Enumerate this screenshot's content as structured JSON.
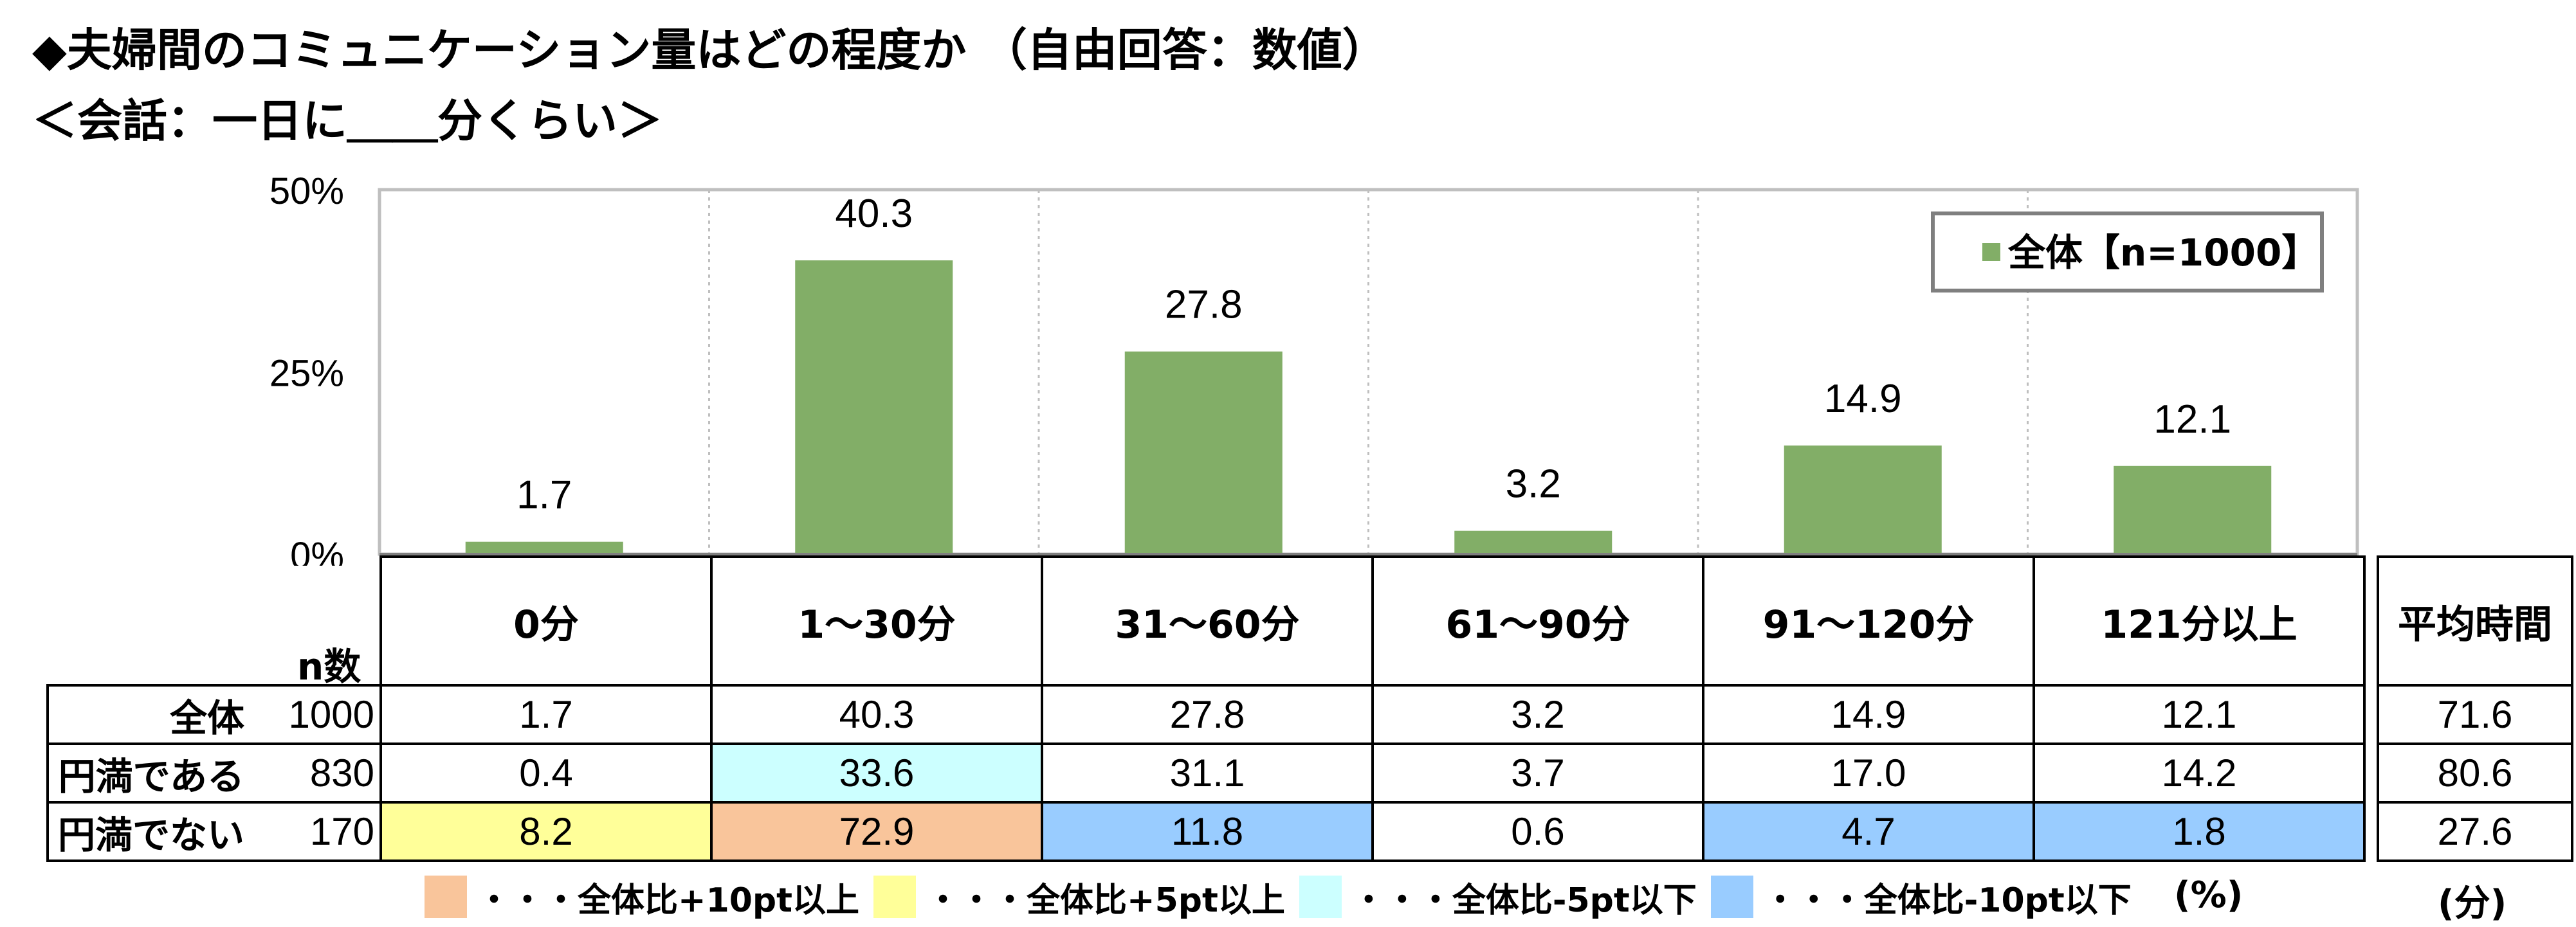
{
  "title_line1": "◆夫婦間のコミュニケーション量はどの程度か （自由回答：数値）",
  "title_line2": "＜会話：一日に＿＿分くらい＞",
  "chart_data": {
    "type": "bar",
    "categories": [
      "0分",
      "1～30分",
      "31～60分",
      "61～90分",
      "91～120分",
      "121分以上"
    ],
    "series": [
      {
        "name": "全体【n=1000】",
        "values": [
          1.7,
          40.3,
          27.8,
          3.2,
          14.9,
          12.1
        ]
      }
    ],
    "ylim": [
      0,
      50
    ],
    "yticks": [
      "0%",
      "25%",
      "50%"
    ],
    "ytick_values": [
      0,
      25,
      50
    ],
    "legend_position": "top-right",
    "bar_color": "#82ae67"
  },
  "table": {
    "n_header": "n数",
    "avg_header": "平均時間",
    "rows": [
      {
        "label": "全体",
        "n": "1000",
        "values": [
          "1.7",
          "40.3",
          "27.8",
          "3.2",
          "14.9",
          "12.1"
        ],
        "avg": "71.6"
      },
      {
        "label": "円満である",
        "n": "830",
        "values": [
          "0.4",
          "33.6",
          "31.1",
          "3.7",
          "17.0",
          "14.2"
        ],
        "avg": "80.6"
      },
      {
        "label": "円満でない",
        "n": "170",
        "values": [
          "8.2",
          "72.9",
          "11.8",
          "0.6",
          "4.7",
          "1.8"
        ],
        "avg": "27.6"
      }
    ],
    "highlights": {
      "円満である": [
        "",
        "cyan",
        "",
        "",
        "",
        ""
      ],
      "円満でない": [
        "yellow",
        "orange",
        "blue",
        "",
        "blue",
        "blue"
      ]
    }
  },
  "highlight_legend": [
    {
      "color": "#f9c59b",
      "label": "・・・全体比+10pt以上"
    },
    {
      "color": "#ffff99",
      "label": "・・・全体比+5pt以上"
    },
    {
      "color": "#ccffff",
      "label": "・・・全体比-5pt以下"
    },
    {
      "color": "#99ccff",
      "label": "・・・全体比-10pt以下"
    }
  ],
  "unit_percent": "(%)",
  "unit_minutes": "(分)"
}
